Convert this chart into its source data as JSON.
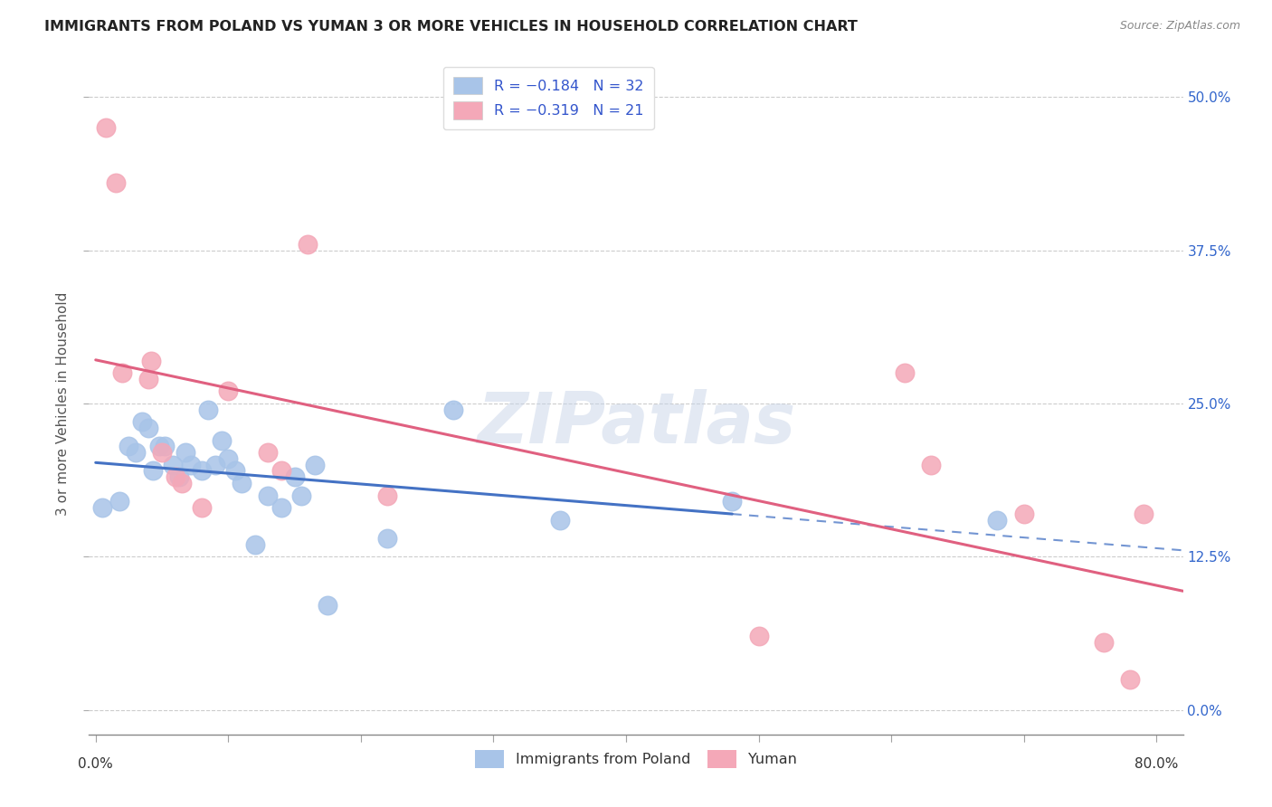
{
  "title": "IMMIGRANTS FROM POLAND VS YUMAN 3 OR MORE VEHICLES IN HOUSEHOLD CORRELATION CHART",
  "source": "Source: ZipAtlas.com",
  "ylabel": "3 or more Vehicles in Household",
  "xlim": [
    -0.005,
    0.82
  ],
  "ylim": [
    -0.02,
    0.52
  ],
  "xlabel_vals": [
    0.0,
    0.8
  ],
  "xlabel_ticks": [
    "0.0%",
    "80.0%"
  ],
  "ylabel_vals": [
    0.0,
    0.125,
    0.25,
    0.375,
    0.5
  ],
  "ylabel_ticks_right": [
    "0.0%",
    "12.5%",
    "25.0%",
    "37.5%",
    "50.0%"
  ],
  "poland_R": -0.184,
  "poland_N": 32,
  "yuman_R": -0.319,
  "yuman_N": 21,
  "poland_color": "#a8c4e8",
  "yuman_color": "#f4a8b8",
  "poland_line_color": "#4472c4",
  "yuman_line_color": "#e06080",
  "poland_x": [
    0.005,
    0.018,
    0.025,
    0.03,
    0.035,
    0.04,
    0.043,
    0.048,
    0.052,
    0.058,
    0.063,
    0.068,
    0.072,
    0.08,
    0.085,
    0.09,
    0.095,
    0.1,
    0.105,
    0.11,
    0.12,
    0.13,
    0.14,
    0.15,
    0.155,
    0.165,
    0.175,
    0.22,
    0.27,
    0.35,
    0.48,
    0.68
  ],
  "poland_y": [
    0.165,
    0.17,
    0.215,
    0.21,
    0.235,
    0.23,
    0.195,
    0.215,
    0.215,
    0.2,
    0.19,
    0.21,
    0.2,
    0.195,
    0.245,
    0.2,
    0.22,
    0.205,
    0.195,
    0.185,
    0.135,
    0.175,
    0.165,
    0.19,
    0.175,
    0.2,
    0.085,
    0.14,
    0.245,
    0.155,
    0.17,
    0.155
  ],
  "yuman_x": [
    0.008,
    0.015,
    0.02,
    0.04,
    0.042,
    0.05,
    0.06,
    0.065,
    0.08,
    0.1,
    0.13,
    0.14,
    0.16,
    0.22,
    0.5,
    0.61,
    0.63,
    0.7,
    0.76,
    0.78,
    0.79
  ],
  "yuman_y": [
    0.475,
    0.43,
    0.275,
    0.27,
    0.285,
    0.21,
    0.19,
    0.185,
    0.165,
    0.26,
    0.21,
    0.195,
    0.38,
    0.175,
    0.06,
    0.275,
    0.2,
    0.16,
    0.055,
    0.025,
    0.16
  ],
  "watermark": "ZIPatlas",
  "background_color": "#ffffff",
  "grid_color": "#cccccc",
  "xtick_minor_vals": [
    0.0,
    0.1,
    0.2,
    0.3,
    0.4,
    0.5,
    0.6,
    0.7,
    0.8
  ]
}
